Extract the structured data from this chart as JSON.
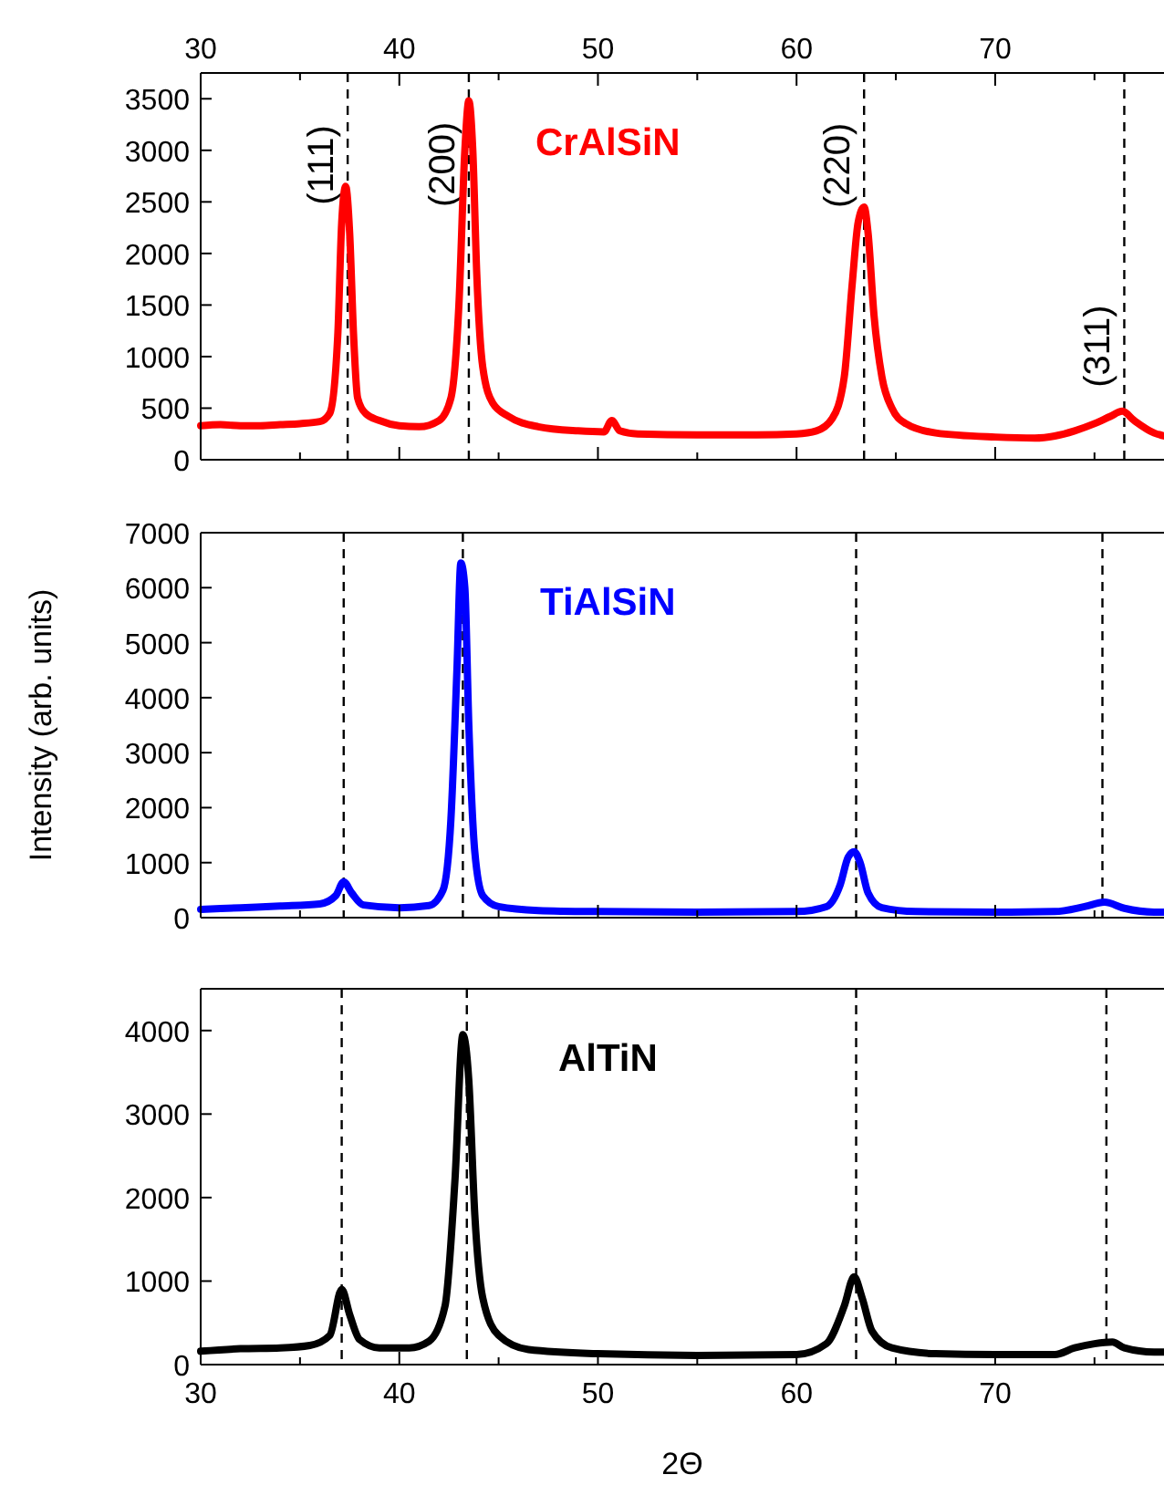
{
  "chart_data": [
    {
      "type": "line",
      "xlim": [
        30,
        78.5
      ],
      "ylim": [
        0,
        3750
      ],
      "yticks": [
        0,
        500,
        1000,
        1500,
        2000,
        2500,
        3000,
        3500
      ],
      "x2lim": [
        30,
        78.5
      ],
      "x2ticks": [
        30,
        40,
        50,
        60,
        70
      ],
      "tick_labels": "y",
      "line_style": "solid",
      "annotations": [
        {
          "text": "(111)",
          "x": 37.4,
          "y": 2470
        },
        {
          "text": "(200)",
          "x": 43.5,
          "y": 2450
        },
        {
          "text": "(220)",
          "x": 63.4,
          "y": 2440
        },
        {
          "text": "(311)",
          "x": 76.5,
          "y": 700
        }
      ],
      "series": [
        {
          "name": "CrAlSiN",
          "color": "#ff0000",
          "x": [
            30,
            31,
            32,
            33,
            34,
            35,
            36,
            36.5,
            36.9,
            37.1,
            37.3,
            37.5,
            37.7,
            37.9,
            38.3,
            39,
            40,
            41,
            42,
            42.6,
            43,
            43.3,
            43.5,
            43.7,
            43.9,
            44.2,
            44.7,
            45.5,
            47,
            49,
            50.3,
            50.7,
            51.1,
            52,
            55,
            58,
            60,
            61,
            61.8,
            62.4,
            62.8,
            63.1,
            63.4,
            63.6,
            63.9,
            64.3,
            64.8,
            65.5,
            67,
            70,
            72,
            73,
            74,
            75,
            75.8,
            76.4,
            77,
            78,
            78.5
          ],
          "values": [
            330,
            340,
            330,
            330,
            340,
            350,
            370,
            450,
            1200,
            2300,
            2650,
            2200,
            1200,
            600,
            450,
            380,
            330,
            320,
            380,
            600,
            1500,
            3000,
            3480,
            3000,
            1800,
            900,
            550,
            420,
            320,
            280,
            270,
            380,
            280,
            250,
            240,
            240,
            250,
            280,
            400,
            800,
            1700,
            2300,
            2450,
            2200,
            1400,
            800,
            500,
            350,
            260,
            220,
            210,
            230,
            280,
            350,
            420,
            470,
            380,
            260,
            230
          ]
        }
      ],
      "ref_lines": [
        {
          "axis": "x",
          "value": 37.4,
          "line_style": "dashed",
          "color": "#000000"
        },
        {
          "axis": "x",
          "value": 43.5,
          "line_style": "dashed",
          "color": "#000000"
        },
        {
          "axis": "x",
          "value": 63.4,
          "line_style": "dashed",
          "color": "#000000"
        },
        {
          "axis": "x",
          "value": 76.5,
          "line_style": "dashed",
          "color": "#000000"
        }
      ]
    },
    {
      "type": "line",
      "xlim": [
        30,
        78.5
      ],
      "ylim": [
        0,
        7000
      ],
      "yticks": [
        0,
        1000,
        2000,
        3000,
        4000,
        5000,
        6000,
        7000
      ],
      "tick_labels": "y",
      "ylabel": "Intensity (arb. units)",
      "line_style": "solid",
      "series": [
        {
          "name": "TiAlSiN",
          "color": "#0000ff",
          "x": [
            30,
            32,
            34,
            36,
            36.8,
            37.2,
            37.6,
            38.2,
            40,
            41.5,
            42.2,
            42.6,
            42.9,
            43.1,
            43.3,
            43.5,
            43.8,
            44.2,
            45,
            47,
            50,
            55,
            60,
            61.5,
            62.2,
            62.6,
            62.9,
            63.2,
            63.6,
            64.3,
            66,
            70,
            73,
            74.5,
            75.5,
            76.5,
            78,
            78.5
          ],
          "values": [
            150,
            180,
            210,
            250,
            400,
            650,
            450,
            230,
            180,
            220,
            500,
            1800,
            4500,
            6450,
            6000,
            3500,
            1200,
            400,
            200,
            130,
            110,
            100,
            110,
            200,
            600,
            1100,
            1200,
            1000,
            450,
            180,
            110,
            100,
            110,
            200,
            280,
            170,
            100,
            100
          ]
        }
      ],
      "ref_lines": [
        {
          "axis": "x",
          "value": 37.2,
          "line_style": "dashed",
          "color": "#000000"
        },
        {
          "axis": "x",
          "value": 43.2,
          "line_style": "dashed",
          "color": "#000000"
        },
        {
          "axis": "x",
          "value": 63,
          "line_style": "dashed",
          "color": "#000000"
        },
        {
          "axis": "x",
          "value": 75.4,
          "line_style": "dashed",
          "color": "#000000"
        }
      ]
    },
    {
      "type": "line",
      "xlim": [
        30,
        78.5
      ],
      "ylim": [
        0,
        4500
      ],
      "yticks": [
        0,
        1000,
        2000,
        3000,
        4000
      ],
      "xticks": [
        30,
        40,
        50,
        60,
        70
      ],
      "xlabel": "2Θ",
      "line_style": "solid",
      "series": [
        {
          "name": "AlTiN",
          "color": "#000000",
          "x": [
            30,
            32,
            34,
            35.5,
            36.5,
            37.1,
            37.5,
            38,
            39,
            40.5,
            41.5,
            42.3,
            42.8,
            43.2,
            43.5,
            43.8,
            44.2,
            45,
            46.5,
            50,
            55,
            60,
            61.5,
            62.4,
            62.9,
            63.3,
            63.8,
            64.8,
            67,
            70,
            73,
            74,
            75,
            75.9,
            76.5,
            78,
            78.5
          ],
          "values": [
            160,
            190,
            200,
            230,
            350,
            900,
            600,
            300,
            200,
            200,
            280,
            700,
            2200,
            3950,
            3400,
            1800,
            800,
            350,
            180,
            130,
            110,
            120,
            250,
            700,
            1050,
            800,
            400,
            200,
            130,
            120,
            120,
            200,
            250,
            270,
            200,
            150,
            150
          ]
        }
      ],
      "ref_lines": [
        {
          "axis": "x",
          "value": 37.1,
          "line_style": "dashed",
          "color": "#000000"
        },
        {
          "axis": "x",
          "value": 43.4,
          "line_style": "dashed",
          "color": "#000000"
        },
        {
          "axis": "x",
          "value": 63,
          "line_style": "dashed",
          "color": "#000000"
        },
        {
          "axis": "x",
          "value": 75.6,
          "line_style": "dashed",
          "color": "#000000"
        }
      ]
    }
  ]
}
